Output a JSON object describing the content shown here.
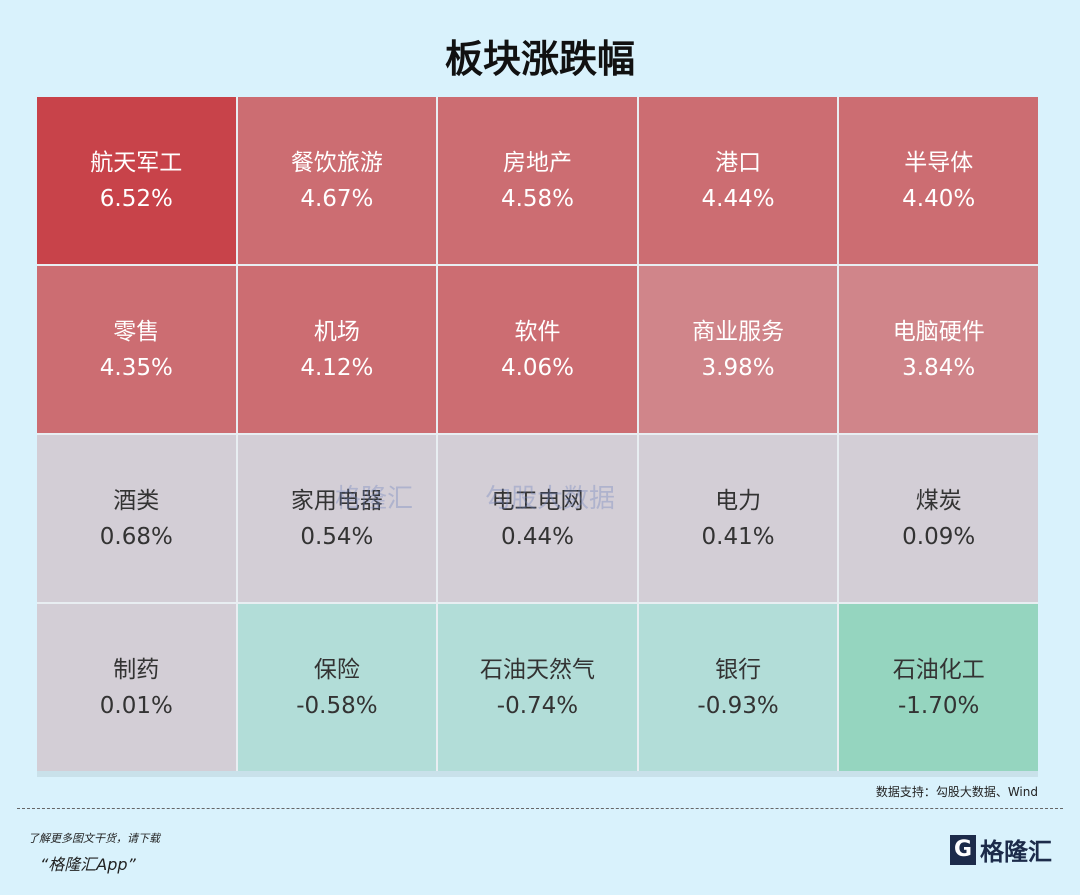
{
  "title": "板块涨跌幅",
  "colors": {
    "strong_up": "#c8434a",
    "up": "#cc6d72",
    "mild_up": "#d0858a",
    "flat": "#d3ced6",
    "down": "#b2ddd8",
    "strong_down": "#95d5bf",
    "background": "#d9f2fc"
  },
  "sectors": [
    {
      "name": "航天军工",
      "change": "6.52%",
      "level": "strong_up"
    },
    {
      "name": "餐饮旅游",
      "change": "4.67%",
      "level": "up"
    },
    {
      "name": "房地产",
      "change": "4.58%",
      "level": "up"
    },
    {
      "name": "港口",
      "change": "4.44%",
      "level": "up"
    },
    {
      "name": "半导体",
      "change": "4.40%",
      "level": "up"
    },
    {
      "name": "零售",
      "change": "4.35%",
      "level": "up"
    },
    {
      "name": "机场",
      "change": "4.12%",
      "level": "up"
    },
    {
      "name": "软件",
      "change": "4.06%",
      "level": "up"
    },
    {
      "name": "商业服务",
      "change": "3.98%",
      "level": "mild_up"
    },
    {
      "name": "电脑硬件",
      "change": "3.84%",
      "level": "mild_up"
    },
    {
      "name": "酒类",
      "change": "0.68%",
      "level": "flat"
    },
    {
      "name": "家用电器",
      "change": "0.54%",
      "level": "flat"
    },
    {
      "name": "电工电网",
      "change": "0.44%",
      "level": "flat"
    },
    {
      "name": "电力",
      "change": "0.41%",
      "level": "flat"
    },
    {
      "name": "煤炭",
      "change": "0.09%",
      "level": "flat"
    },
    {
      "name": "制药",
      "change": "0.01%",
      "level": "flat"
    },
    {
      "name": "保险",
      "change": "-0.58%",
      "level": "down"
    },
    {
      "name": "石油天然气",
      "change": "-0.74%",
      "level": "down"
    },
    {
      "name": "银行",
      "change": "-0.93%",
      "level": "down"
    },
    {
      "name": "石油化工",
      "change": "-1.70%",
      "level": "strong_down"
    }
  ],
  "watermark": {
    "left": "格隆汇",
    "right": "勾股大数据"
  },
  "source": "数据支持：勾股大数据、Wind",
  "promo": {
    "line1": "了解更多图文干货，请下载",
    "line2": "“格隆汇App”"
  },
  "logo": {
    "mark": "G",
    "text": "格隆汇"
  }
}
